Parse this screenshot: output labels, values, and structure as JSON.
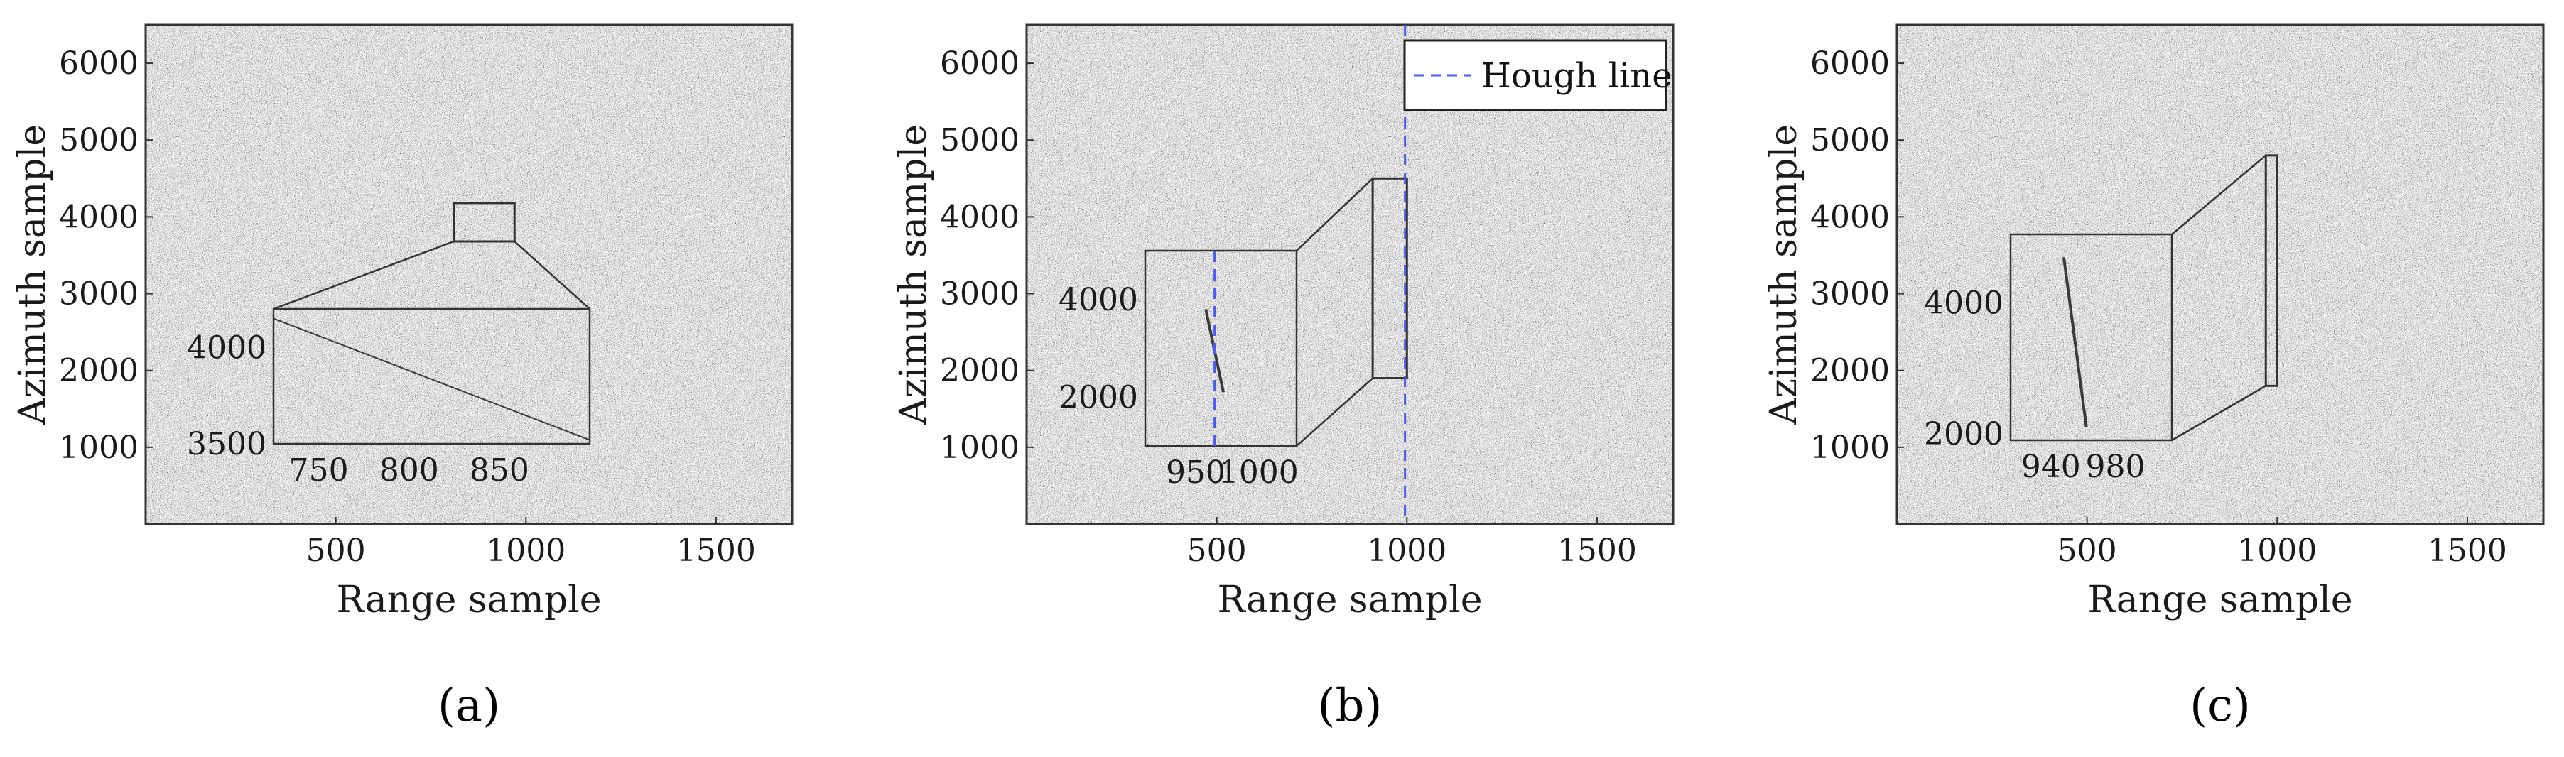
{
  "chart_data": [
    {
      "panel": "a",
      "type": "scatter",
      "title": "",
      "xlabel": "Range sample",
      "ylabel": "Azimuth sample",
      "xlim": [
        0,
        1700
      ],
      "ylim": [
        0,
        6500
      ],
      "xticks": [
        500,
        1000,
        1500
      ],
      "yticks": [
        1000,
        2000,
        3000,
        4000,
        5000,
        6000
      ],
      "roi": {
        "x": [
          810,
          970
        ],
        "y": [
          3680,
          4180
        ]
      },
      "inset": {
        "xticks": [
          750,
          800,
          850
        ],
        "yticks": [
          3500,
          4000
        ],
        "xlim": [
          725,
          900
        ],
        "ylim": [
          3500,
          4200
        ],
        "trace": {
          "x": [
            725,
            900
          ],
          "y": [
            4150,
            3520
          ]
        }
      },
      "legend": null,
      "caption": "(a)"
    },
    {
      "panel": "b",
      "type": "scatter",
      "title": "",
      "xlabel": "Range sample",
      "ylabel": "Azimuth sample",
      "xlim": [
        0,
        1700
      ],
      "ylim": [
        0,
        6500
      ],
      "xticks": [
        500,
        1000,
        1500
      ],
      "yticks": [
        1000,
        2000,
        3000,
        4000,
        5000,
        6000
      ],
      "roi": {
        "x": [
          910,
          1000
        ],
        "y": [
          1900,
          4500
        ]
      },
      "hough_line_x": 995,
      "inset": {
        "xticks": [
          950,
          1000
        ],
        "yticks": [
          2000,
          4000
        ],
        "xlim": [
          910,
          1030
        ],
        "ylim": [
          1000,
          5000
        ],
        "hough_x": 965,
        "trace": {
          "x": [
            958,
            972
          ],
          "y": [
            3800,
            2100
          ]
        }
      },
      "legend": {
        "entries": [
          "Hough line"
        ],
        "placement": "top-right"
      },
      "caption": "(b)"
    },
    {
      "panel": "c",
      "type": "scatter",
      "title": "",
      "xlabel": "Range sample",
      "ylabel": "Azimuth sample",
      "xlim": [
        0,
        1700
      ],
      "ylim": [
        0,
        6500
      ],
      "xticks": [
        500,
        1000,
        1500
      ],
      "yticks": [
        1000,
        2000,
        3000,
        4000,
        5000,
        6000
      ],
      "roi": {
        "x": [
          970,
          1000
        ],
        "y": [
          1800,
          4800
        ]
      },
      "inset": {
        "xticks": [
          940,
          980
        ],
        "yticks": [
          2000,
          4000
        ],
        "xlim": [
          915,
          1015
        ],
        "ylim": [
          1900,
          5050
        ],
        "trace": {
          "x": [
            948,
            962
          ],
          "y": [
            4700,
            2100
          ]
        }
      },
      "legend": null,
      "caption": "(c)"
    }
  ],
  "colors": {
    "noise_light": "#c8c8c8",
    "noise_dark": "#6a6a6a",
    "frame": "#333333",
    "hough": "#4a5bf0",
    "trace": "#3a3a3a"
  }
}
